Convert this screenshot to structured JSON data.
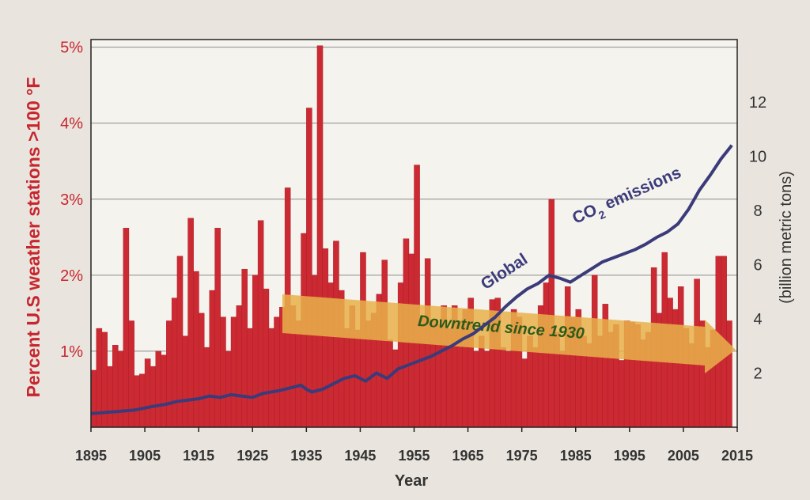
{
  "colors": {
    "bar": "#cc2a33",
    "bar_edge": "#a31a22",
    "plot_bg": "#f5f3ee",
    "grid": "#8a8a8a",
    "line": "#3b3b7a",
    "left_axis_text": "#c8262e",
    "axis_text": "#333333",
    "arrow_fill": "#e8b04a",
    "arrow_text": "#2e5b1a"
  },
  "chart_data": {
    "type": "bar",
    "xlabel": "Year",
    "ylabel": "Percent U.S weather stations >100 °F",
    "y2label": "(billion metric tons)",
    "xlim": [
      1895,
      2015
    ],
    "ylim": [
      0,
      5.1
    ],
    "y2lim": [
      0,
      14.3
    ],
    "x_ticks": [
      "1895",
      "1905",
      "1915",
      "1925",
      "1935",
      "1945",
      "1955",
      "1965",
      "1975",
      "1985",
      "1995",
      "2005",
      "2015"
    ],
    "y_ticks": [
      "1%",
      "2%",
      "3%",
      "4%",
      "5%"
    ],
    "y2_ticks": [
      "2",
      "4",
      "6",
      "8",
      "10",
      "12"
    ],
    "grid": true,
    "series": [
      {
        "kind": "bar",
        "x": [
          1895,
          1896,
          1897,
          1898,
          1899,
          1900,
          1901,
          1902,
          1903,
          1904,
          1905,
          1906,
          1907,
          1908,
          1909,
          1910,
          1911,
          1912,
          1913,
          1914,
          1915,
          1916,
          1917,
          1918,
          1919,
          1920,
          1921,
          1922,
          1923,
          1924,
          1925,
          1926,
          1927,
          1928,
          1929,
          1930,
          1931,
          1932,
          1933,
          1934,
          1935,
          1936,
          1937,
          1938,
          1939,
          1940,
          1941,
          1942,
          1943,
          1944,
          1945,
          1946,
          1947,
          1948,
          1949,
          1950,
          1951,
          1952,
          1953,
          1954,
          1955,
          1956,
          1957,
          1958,
          1959,
          1960,
          1961,
          1962,
          1963,
          1964,
          1965,
          1966,
          1967,
          1968,
          1969,
          1970,
          1971,
          1972,
          1973,
          1974,
          1975,
          1976,
          1977,
          1978,
          1979,
          1980,
          1981,
          1982,
          1983,
          1984,
          1985,
          1986,
          1987,
          1988,
          1989,
          1990,
          1991,
          1992,
          1993,
          1994,
          1995,
          1996,
          1997,
          1998,
          1999,
          2000,
          2001,
          2002,
          2003,
          2004,
          2005,
          2006,
          2007,
          2008,
          2009,
          2010,
          2011,
          2012,
          2013
        ],
        "values": [
          0.75,
          1.3,
          1.25,
          0.8,
          1.08,
          1.0,
          2.62,
          1.4,
          0.68,
          0.7,
          0.9,
          0.8,
          1.0,
          0.95,
          1.4,
          1.7,
          2.25,
          1.2,
          2.75,
          2.05,
          1.5,
          1.05,
          1.8,
          2.62,
          1.45,
          1.0,
          1.45,
          1.6,
          2.08,
          1.3,
          2.0,
          2.72,
          1.82,
          1.3,
          1.45,
          1.58,
          3.15,
          1.6,
          1.4,
          2.55,
          4.2,
          2.0,
          5.02,
          2.35,
          1.9,
          2.45,
          1.8,
          1.3,
          1.6,
          1.28,
          2.3,
          1.4,
          1.5,
          1.75,
          2.2,
          1.15,
          1.02,
          1.9,
          2.48,
          2.28,
          3.45,
          1.45,
          2.22,
          1.4,
          1.35,
          1.6,
          1.3,
          1.6,
          1.4,
          1.55,
          1.7,
          1.0,
          1.2,
          1.0,
          1.68,
          1.7,
          1.05,
          1.0,
          1.55,
          1.45,
          0.9,
          1.2,
          1.05,
          1.6,
          1.9,
          3.0,
          1.25,
          1.0,
          1.85,
          1.45,
          1.55,
          1.2,
          1.1,
          2.0,
          1.2,
          1.62,
          1.25,
          1.35,
          0.88,
          1.4,
          1.38,
          1.35,
          1.15,
          1.25,
          2.1,
          1.5,
          2.3,
          1.7,
          1.55,
          1.85,
          1.3,
          1.1,
          1.95,
          1.4,
          1.05,
          1.28,
          2.25,
          2.25,
          1.4
        ]
      },
      {
        "kind": "line",
        "name": "Global CO2 emissions",
        "axis": "right",
        "x": [
          1895,
          1898,
          1900,
          1903,
          1906,
          1909,
          1911,
          1913,
          1915,
          1917,
          1919,
          1921,
          1923,
          1925,
          1927,
          1930,
          1932,
          1934,
          1935,
          1936,
          1938,
          1940,
          1942,
          1944,
          1946,
          1948,
          1950,
          1952,
          1954,
          1956,
          1958,
          1960,
          1962,
          1964,
          1966,
          1968,
          1970,
          1972,
          1974,
          1976,
          1978,
          1980,
          1982,
          1984,
          1986,
          1988,
          1990,
          1992,
          1994,
          1996,
          1998,
          2000,
          2002,
          2004,
          2006,
          2008,
          2010,
          2012,
          2014
        ],
        "values": [
          0.5,
          0.55,
          0.58,
          0.63,
          0.75,
          0.85,
          0.95,
          1.0,
          1.05,
          1.15,
          1.1,
          1.2,
          1.15,
          1.1,
          1.25,
          1.35,
          1.45,
          1.55,
          1.4,
          1.3,
          1.4,
          1.6,
          1.8,
          1.9,
          1.7,
          2.0,
          1.8,
          2.15,
          2.3,
          2.45,
          2.6,
          2.8,
          3.0,
          3.25,
          3.45,
          3.75,
          4.05,
          4.45,
          4.8,
          5.1,
          5.3,
          5.6,
          5.5,
          5.35,
          5.6,
          5.85,
          6.1,
          6.25,
          6.4,
          6.55,
          6.75,
          7.0,
          7.2,
          7.5,
          8.05,
          8.75,
          9.3,
          9.9,
          10.4
        ]
      }
    ],
    "annotations": {
      "line_label_word1": "Global",
      "line_label_word2_pre": "CO",
      "line_label_sub": "2",
      "line_label_word2_post": " emissions",
      "arrow_text": "Downtrend since 1930"
    }
  }
}
